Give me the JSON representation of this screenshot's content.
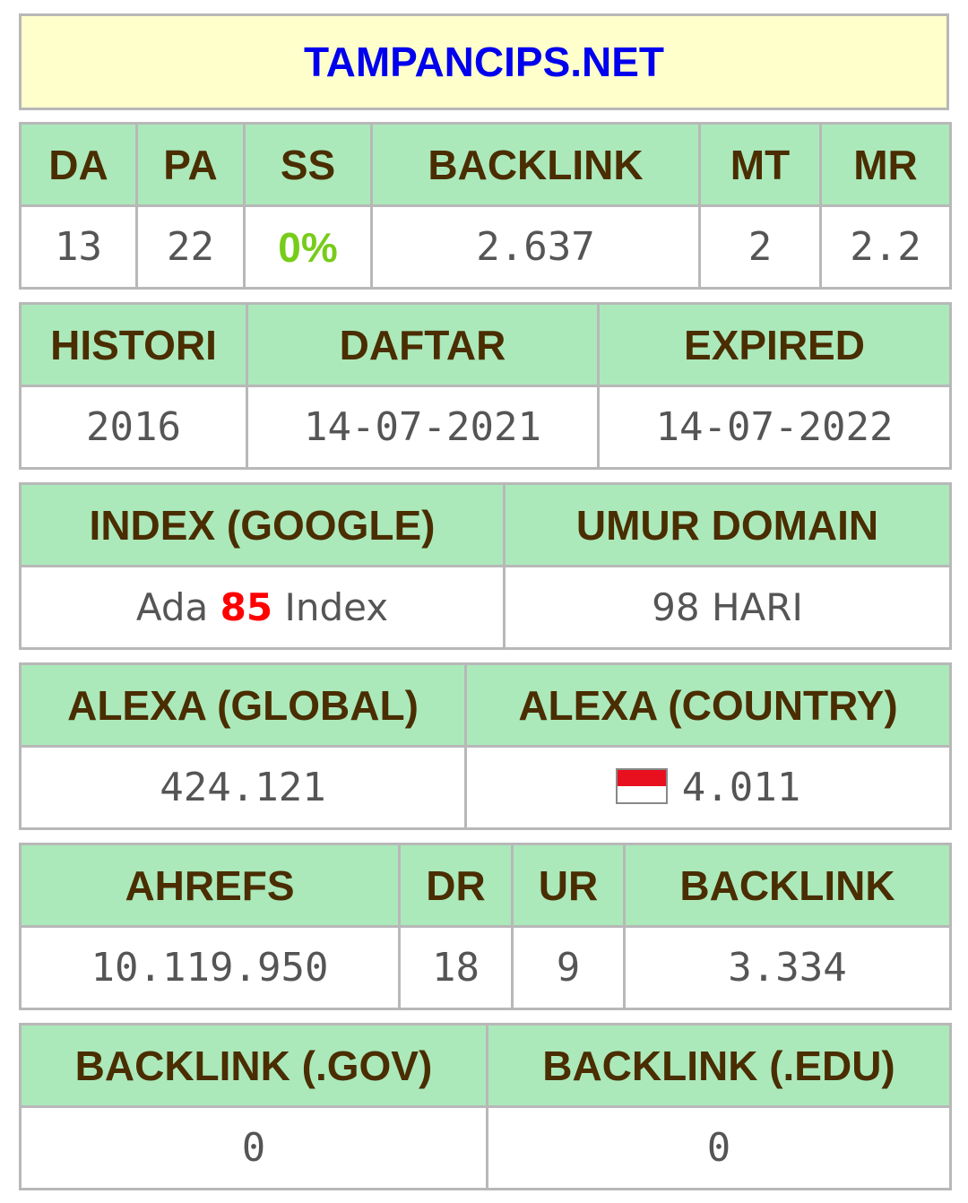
{
  "domain_name": "TAMPANCIPS.NET",
  "moz": {
    "headers": [
      "DA",
      "PA",
      "SS",
      "BACKLINK",
      "MT",
      "MR"
    ],
    "values": [
      "13",
      "22",
      "0%",
      "2.637",
      "2",
      "2.2"
    ]
  },
  "history": {
    "headers": [
      "HISTORI",
      "DAFTAR",
      "EXPIRED"
    ],
    "values": [
      "2016",
      "14-07-2021",
      "14-07-2022"
    ]
  },
  "index": {
    "headers": [
      "INDEX (GOOGLE)",
      "UMUR DOMAIN"
    ],
    "index_prefix": "Ada",
    "index_count": "85",
    "index_suffix": "Index",
    "age": "98 HARI"
  },
  "alexa": {
    "headers": [
      "ALEXA (GLOBAL)",
      "ALEXA (COUNTRY)"
    ],
    "global": "424.121",
    "country": "4.011",
    "country_flag": "indonesia-flag-icon"
  },
  "ahrefs": {
    "headers": [
      "AHREFS",
      "DR",
      "UR",
      "BACKLINK"
    ],
    "values": [
      "10.119.950",
      "18",
      "9",
      "3.334"
    ]
  },
  "special_backlinks": {
    "headers": [
      "BACKLINK (.GOV)",
      "BACKLINK (.EDU)"
    ],
    "values": [
      "0",
      "0"
    ]
  },
  "colors": {
    "title_blue": "#0000ee",
    "title_bg": "#ffffcc",
    "header_bg": "#abe9bb",
    "header_text": "#4a2d00",
    "ss_green": "#77cc1a",
    "index_red": "#ff0000"
  }
}
